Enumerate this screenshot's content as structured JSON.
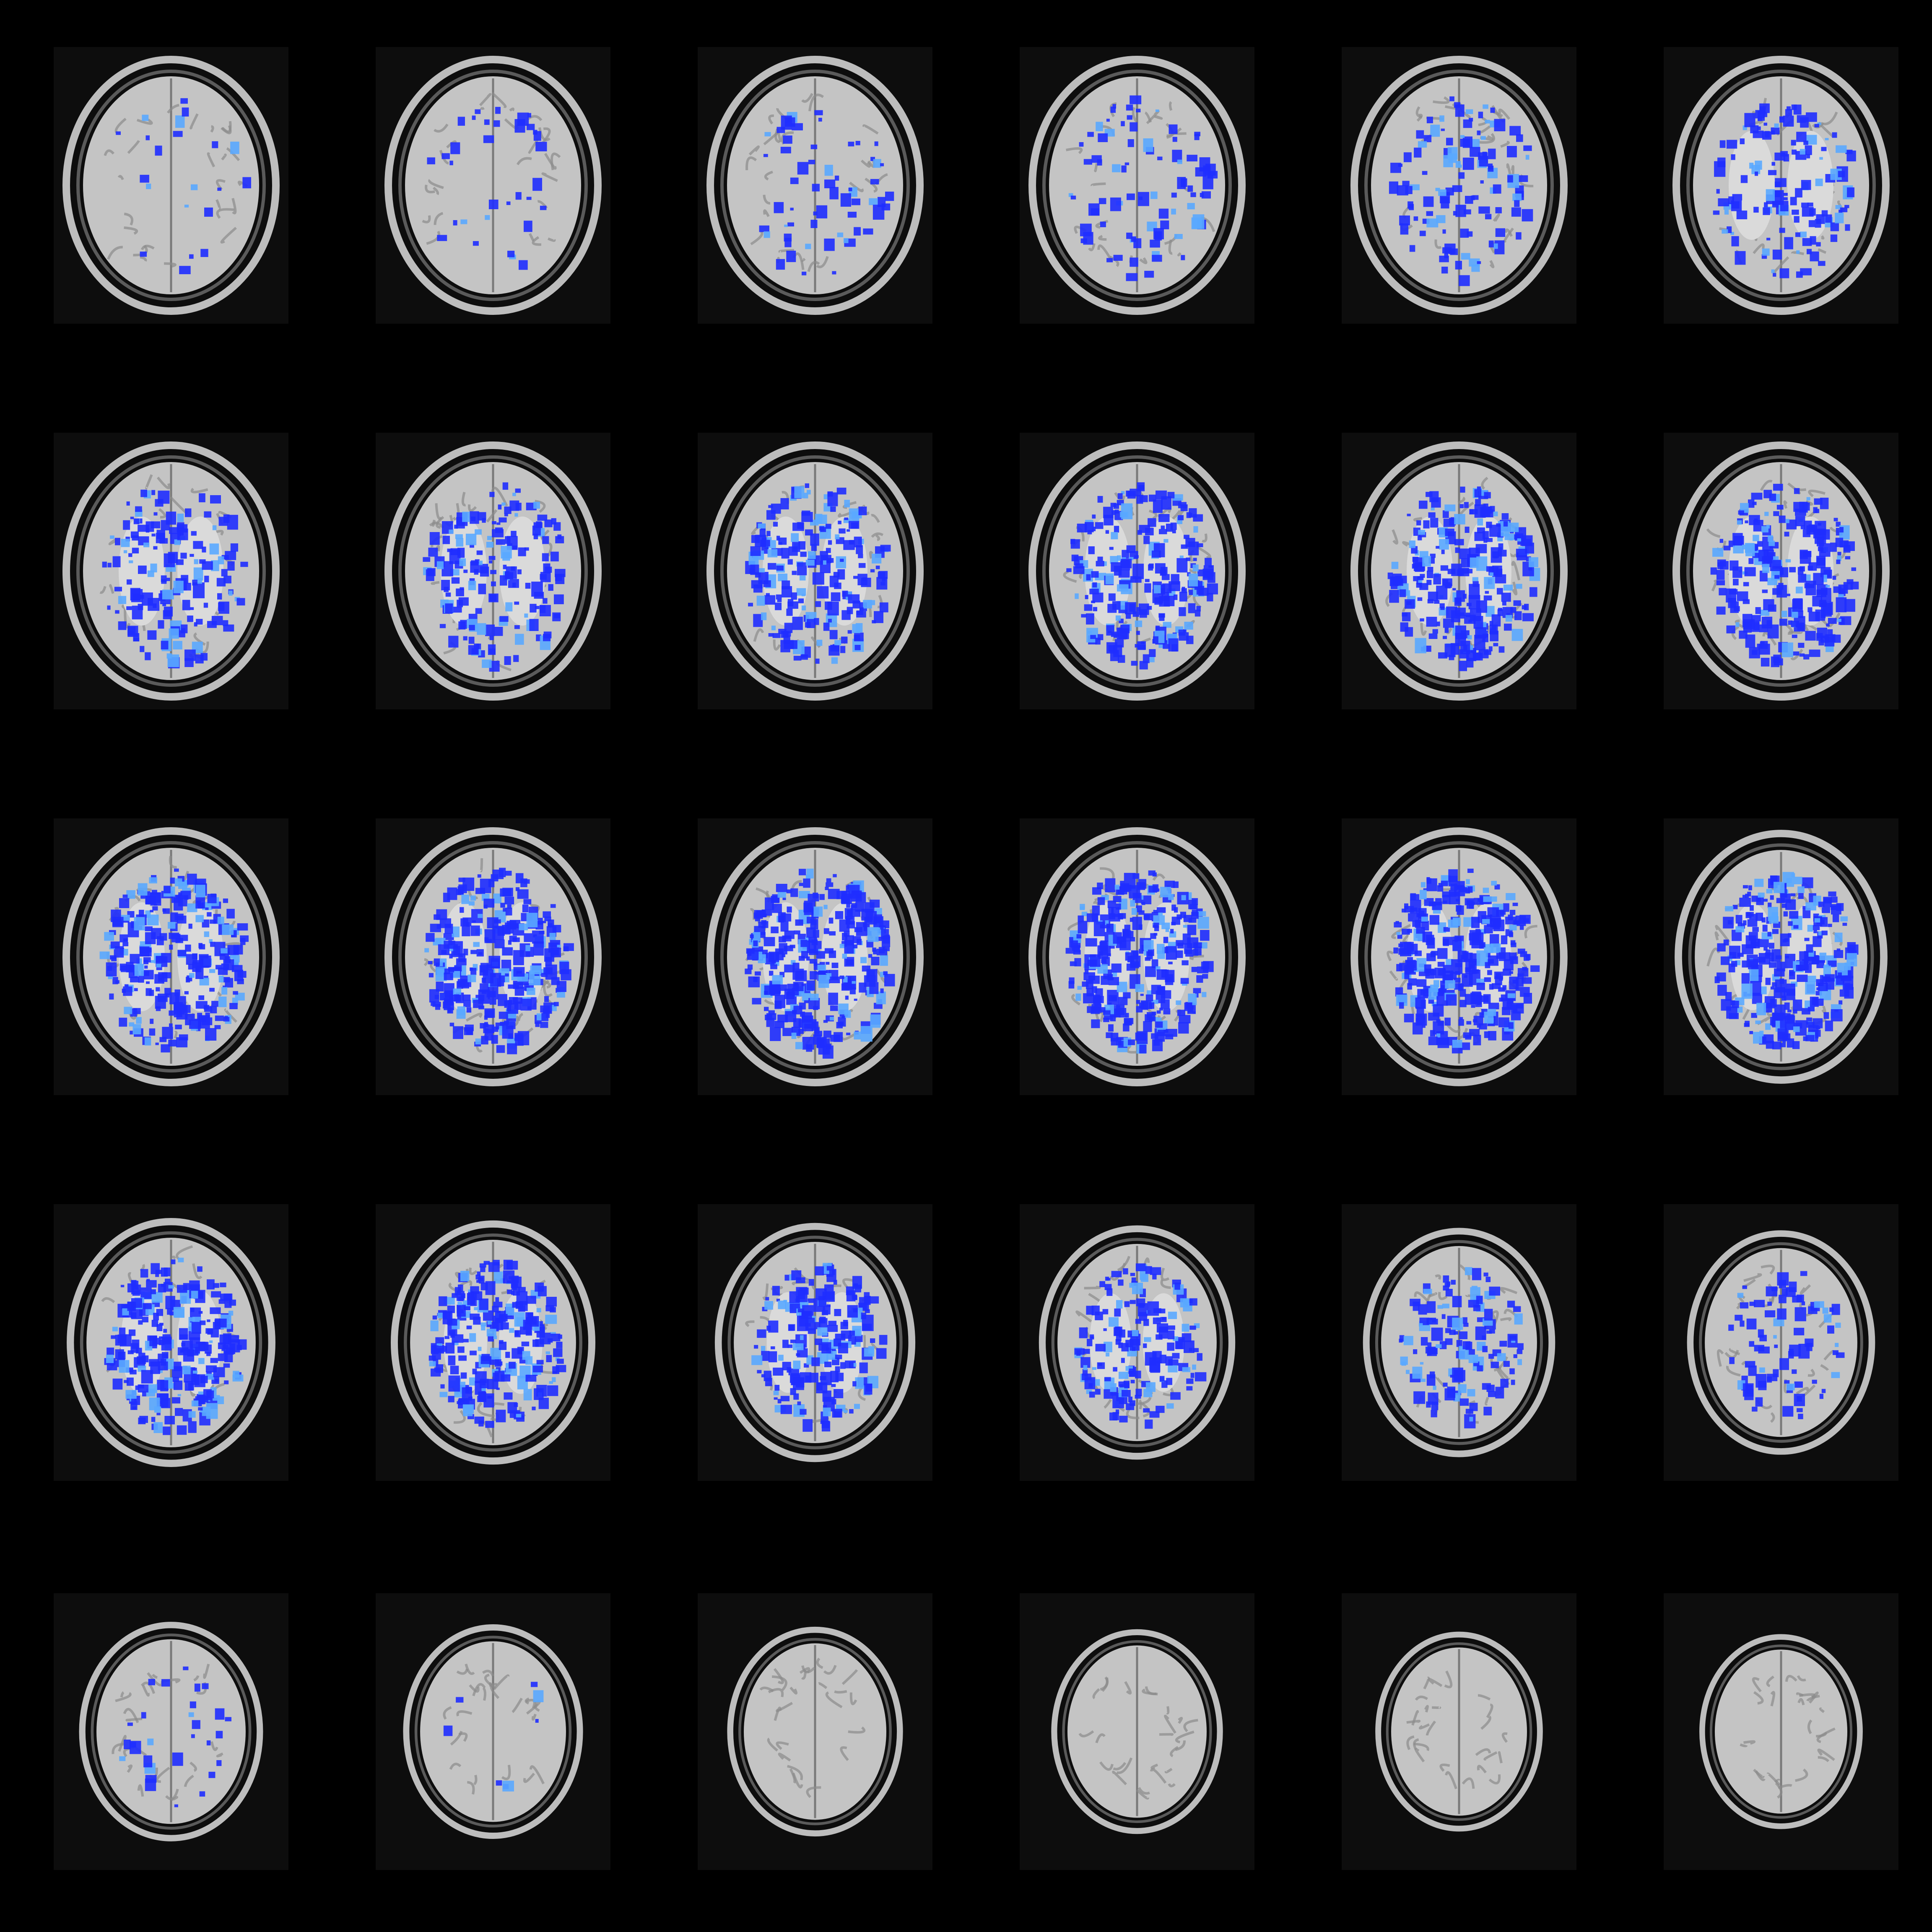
{
  "figure": {
    "view": "axial",
    "layout": {
      "rows": 5,
      "cols": 6
    },
    "colors": {
      "background": "#000000",
      "slice_background": "#0d0d0d",
      "brain_tissue": "#c4c4c4",
      "white_matter": "#dadada",
      "skull": "#bdbdbd",
      "overlay_low": "#1f2dff",
      "overlay_high": "#5aa8ff"
    },
    "slices": [
      {
        "index": 1,
        "overlay_extent": 0.05
      },
      {
        "index": 2,
        "overlay_extent": 0.08
      },
      {
        "index": 3,
        "overlay_extent": 0.14
      },
      {
        "index": 4,
        "overlay_extent": 0.2
      },
      {
        "index": 5,
        "overlay_extent": 0.28
      },
      {
        "index": 6,
        "overlay_extent": 0.34
      },
      {
        "index": 7,
        "overlay_extent": 0.38
      },
      {
        "index": 8,
        "overlay_extent": 0.42
      },
      {
        "index": 9,
        "overlay_extent": 0.52
      },
      {
        "index": 10,
        "overlay_extent": 0.58
      },
      {
        "index": 11,
        "overlay_extent": 0.62
      },
      {
        "index": 12,
        "overlay_extent": 0.58
      },
      {
        "index": 13,
        "overlay_extent": 0.66
      },
      {
        "index": 14,
        "overlay_extent": 0.72
      },
      {
        "index": 15,
        "overlay_extent": 0.78
      },
      {
        "index": 16,
        "overlay_extent": 0.74
      },
      {
        "index": 17,
        "overlay_extent": 0.8
      },
      {
        "index": 18,
        "overlay_extent": 0.72
      },
      {
        "index": 19,
        "overlay_extent": 0.64
      },
      {
        "index": 20,
        "overlay_extent": 0.62
      },
      {
        "index": 21,
        "overlay_extent": 0.48
      },
      {
        "index": 22,
        "overlay_extent": 0.42
      },
      {
        "index": 23,
        "overlay_extent": 0.32
      },
      {
        "index": 24,
        "overlay_extent": 0.2
      },
      {
        "index": 25,
        "overlay_extent": 0.07
      },
      {
        "index": 26,
        "overlay_extent": 0.02
      },
      {
        "index": 27,
        "overlay_extent": 0.0
      },
      {
        "index": 28,
        "overlay_extent": 0.0
      },
      {
        "index": 29,
        "overlay_extent": 0.0
      },
      {
        "index": 30,
        "overlay_extent": 0.0
      }
    ]
  }
}
